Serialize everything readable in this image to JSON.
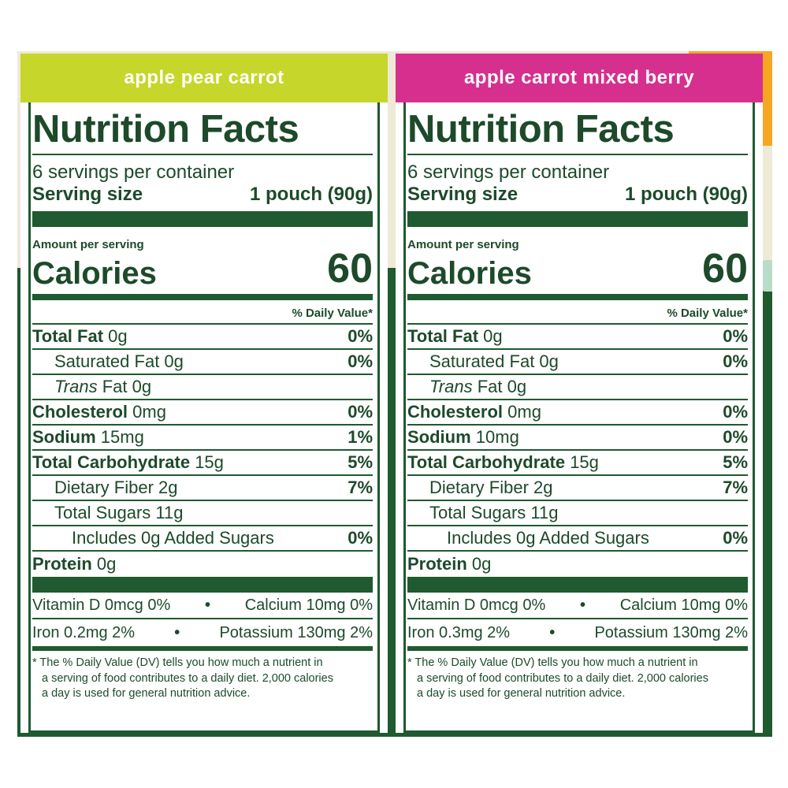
{
  "labels": [
    {
      "flavor": "apple pear carrot",
      "flavor_color": "#c6d62b",
      "title": "Nutrition Facts",
      "servings_per_container": "6 servings per container",
      "serving_size_label": "Serving size",
      "serving_size_value": "1 pouch (90g)",
      "amount_per_serving": "Amount per serving",
      "calories_label": "Calories",
      "calories_value": "60",
      "daily_value_header": "% Daily Value*",
      "total_fat": {
        "label": "Total Fat",
        "amount": "0g",
        "dv": "0%"
      },
      "saturated_fat": {
        "label": "Saturated Fat 0g",
        "dv": "0%"
      },
      "trans_fat": {
        "label_italic": "Trans",
        "label_rest": "Fat 0g"
      },
      "cholesterol": {
        "label": "Cholesterol",
        "amount": "0mg",
        "dv": "0%"
      },
      "sodium": {
        "label": "Sodium",
        "amount": "15mg",
        "dv": "1%"
      },
      "total_carbohydrate": {
        "label": "Total Carbohydrate",
        "amount": "15g",
        "dv": "5%"
      },
      "dietary_fiber": {
        "label": "Dietary Fiber 2g",
        "dv": "7%"
      },
      "total_sugars": {
        "label": "Total Sugars 11g"
      },
      "added_sugars": {
        "label": "Includes 0g Added Sugars",
        "dv": "0%"
      },
      "protein": {
        "label": "Protein",
        "amount": "0g"
      },
      "vitamin_d": "Vitamin D 0mcg 0%",
      "calcium": "Calcium 10mg 0%",
      "iron": "Iron 0.2mg 2%",
      "potassium": "Potassium 130mg 2%",
      "bullet": "•",
      "footnote_line1": "* The % Daily Value (DV) tells you how much a nutrient in",
      "footnote_line2": "a serving of food contributes to a daily diet. 2,000 calories",
      "footnote_line3": "a day is used for general nutrition advice."
    },
    {
      "flavor": "apple carrot mixed berry",
      "flavor_color": "#d72f8e",
      "title": "Nutrition Facts",
      "servings_per_container": "6 servings per container",
      "serving_size_label": "Serving size",
      "serving_size_value": "1 pouch (90g)",
      "amount_per_serving": "Amount per serving",
      "calories_label": "Calories",
      "calories_value": "60",
      "daily_value_header": "% Daily Value*",
      "total_fat": {
        "label": "Total Fat",
        "amount": "0g",
        "dv": "0%"
      },
      "saturated_fat": {
        "label": "Saturated Fat 0g",
        "dv": "0%"
      },
      "trans_fat": {
        "label_italic": "Trans",
        "label_rest": "Fat 0g"
      },
      "cholesterol": {
        "label": "Cholesterol",
        "amount": "0mg",
        "dv": "0%"
      },
      "sodium": {
        "label": "Sodium",
        "amount": "10mg",
        "dv": "0%"
      },
      "total_carbohydrate": {
        "label": "Total Carbohydrate",
        "amount": "15g",
        "dv": "5%"
      },
      "dietary_fiber": {
        "label": "Dietary Fiber 2g",
        "dv": "7%"
      },
      "total_sugars": {
        "label": "Total Sugars 11g"
      },
      "added_sugars": {
        "label": "Includes 0g Added Sugars",
        "dv": "0%"
      },
      "protein": {
        "label": "Protein",
        "amount": "0g"
      },
      "vitamin_d": "Vitamin D 0mcg 0%",
      "calcium": "Calcium 10mg 0%",
      "iron": "Iron 0.3mg 2%",
      "potassium": "Potassium 130mg 2%",
      "bullet": "•",
      "footnote_line1": "* The % Daily Value (DV) tells you how much a nutrient in",
      "footnote_line2": "a serving of food contributes to a daily diet. 2,000 calories",
      "footnote_line3": "a day is used for general nutrition advice."
    }
  ],
  "colors": {
    "label_green": "#1f5a30",
    "background_cream": "#efe9d8",
    "accent_orange": "#f6a623"
  }
}
